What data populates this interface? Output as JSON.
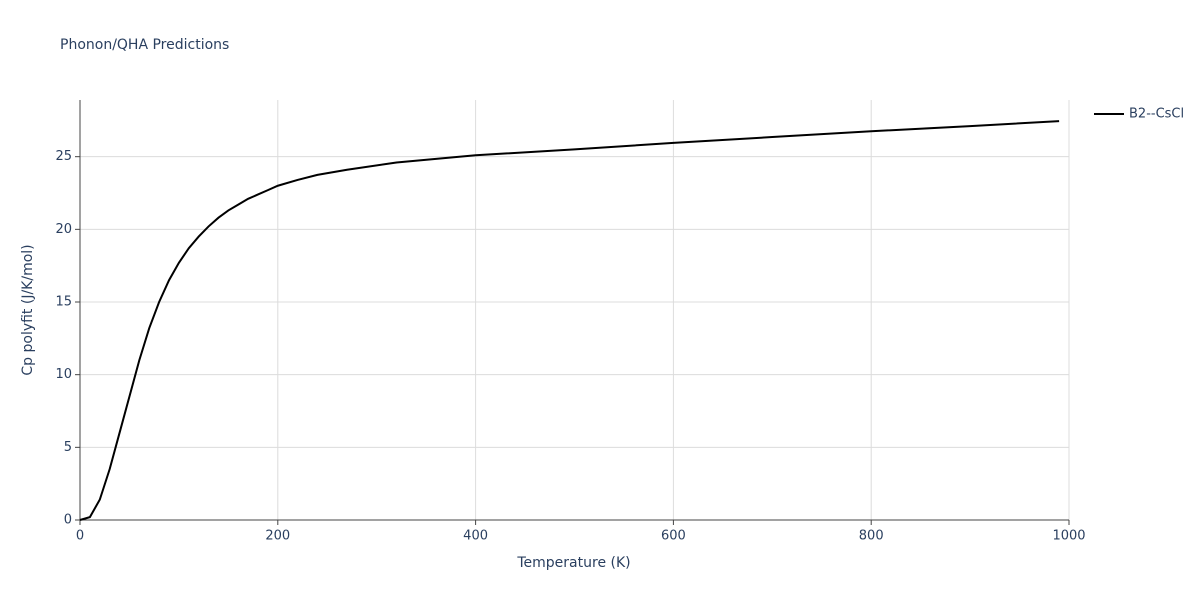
{
  "chart_data": {
    "type": "line",
    "title": "Phonon/QHA Predictions",
    "x_label": "Temperature (K)",
    "y_label": "Cp polyfit (J/K/mol)",
    "x": [
      0,
      10,
      20,
      30,
      40,
      50,
      60,
      70,
      80,
      90,
      100,
      110,
      120,
      130,
      140,
      150,
      160,
      170,
      180,
      190,
      200,
      220,
      240,
      270,
      320,
      400,
      500,
      600,
      700,
      800,
      900,
      990
    ],
    "series": [
      {
        "name": "B2--CsCl",
        "color": "#000000",
        "values": [
          0,
          0.2,
          1.4,
          3.5,
          6.0,
          8.5,
          11.0,
          13.2,
          15.0,
          16.5,
          17.7,
          18.7,
          19.5,
          20.2,
          20.8,
          21.3,
          21.7,
          22.1,
          22.4,
          22.7,
          23.0,
          23.4,
          23.75,
          24.1,
          24.6,
          25.1,
          25.5,
          25.95,
          26.35,
          26.75,
          27.1,
          27.45
        ]
      }
    ],
    "xlim": [
      0,
      1000
    ],
    "xticks": [
      0,
      200,
      400,
      600,
      800,
      1000
    ],
    "ylim": [
      0,
      28.9
    ],
    "yticks": [
      0,
      5,
      10,
      15,
      20,
      25
    ],
    "grid": true,
    "legend": "top-right"
  }
}
